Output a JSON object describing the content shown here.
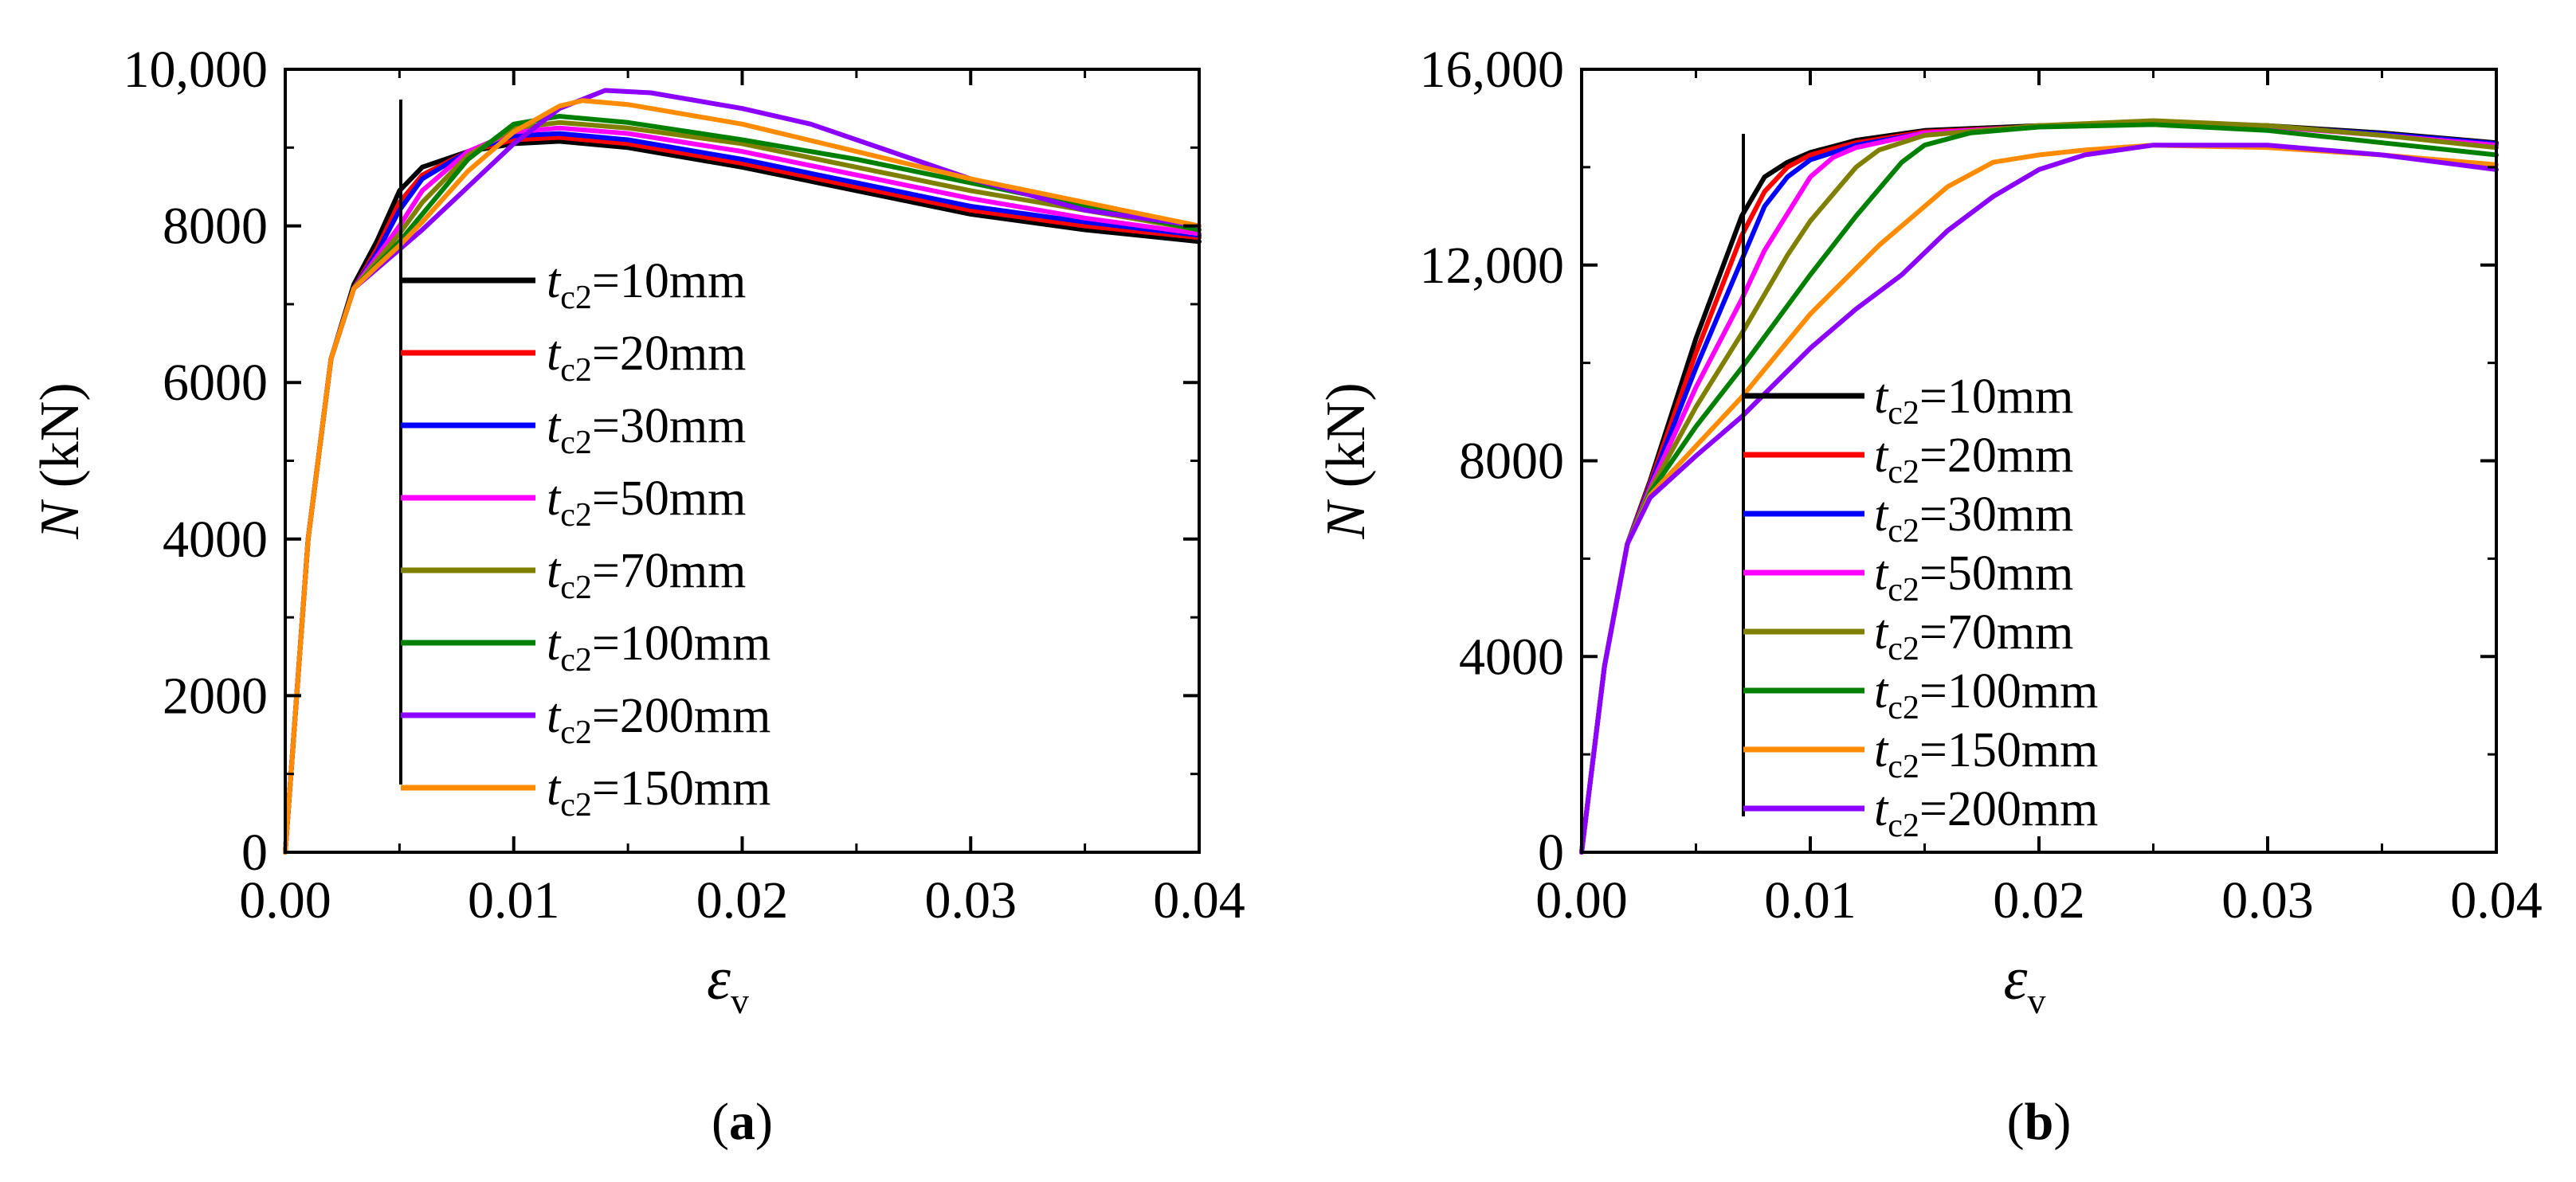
{
  "chart_data": [
    {
      "id": "a",
      "type": "line",
      "caption": "a",
      "xlabel": "ε",
      "xlabel_sub": "v",
      "ylabel_var": "N",
      "ylabel_unit": " (kN)",
      "xlim": [
        0,
        0.04
      ],
      "ylim": [
        0,
        10000
      ],
      "xticks": [
        0,
        0.01,
        0.02,
        0.03,
        0.04
      ],
      "xtick_labels": [
        "0.00",
        "0.01",
        "0.02",
        "0.03",
        "0.04"
      ],
      "yticks": [
        0,
        2000,
        4000,
        6000,
        8000,
        10000
      ],
      "ytick_labels": [
        "0",
        "2000",
        "4000",
        "6000",
        "8000",
        "10,000"
      ],
      "grid": false,
      "legend_position": "center",
      "series": [
        {
          "name": "10mm",
          "color": "#000000",
          "x": [
            0,
            0.001,
            0.002,
            0.003,
            0.004,
            0.005,
            0.006,
            0.008,
            0.01,
            0.012,
            0.015,
            0.02,
            0.025,
            0.03,
            0.035,
            0.04
          ],
          "y": [
            0,
            4000,
            6300,
            7250,
            7800,
            8450,
            8750,
            8950,
            9050,
            9080,
            9000,
            8750,
            8450,
            8150,
            7950,
            7800
          ]
        },
        {
          "name": "20mm",
          "color": "#ff0000",
          "x": [
            0,
            0.001,
            0.002,
            0.003,
            0.004,
            0.005,
            0.006,
            0.008,
            0.01,
            0.012,
            0.015,
            0.02,
            0.025,
            0.03,
            0.035,
            0.04
          ],
          "y": [
            0,
            4000,
            6300,
            7200,
            7700,
            8300,
            8650,
            8950,
            9100,
            9130,
            9050,
            8800,
            8500,
            8200,
            8000,
            7850
          ]
        },
        {
          "name": "30mm",
          "color": "#0000ff",
          "x": [
            0,
            0.001,
            0.002,
            0.003,
            0.004,
            0.005,
            0.006,
            0.008,
            0.01,
            0.012,
            0.015,
            0.02,
            0.025,
            0.03,
            0.035,
            0.04
          ],
          "y": [
            0,
            4000,
            6300,
            7200,
            7650,
            8200,
            8600,
            8950,
            9150,
            9180,
            9100,
            8850,
            8550,
            8250,
            8050,
            7880
          ]
        },
        {
          "name": "50mm",
          "color": "#ff00ff",
          "x": [
            0,
            0.001,
            0.002,
            0.003,
            0.004,
            0.005,
            0.006,
            0.008,
            0.01,
            0.012,
            0.015,
            0.02,
            0.025,
            0.03,
            0.035,
            0.04
          ],
          "y": [
            0,
            4000,
            6300,
            7200,
            7600,
            8000,
            8450,
            8950,
            9200,
            9250,
            9180,
            8950,
            8650,
            8350,
            8100,
            7900
          ]
        },
        {
          "name": "70mm",
          "color": "#808000",
          "x": [
            0,
            0.001,
            0.002,
            0.003,
            0.004,
            0.005,
            0.006,
            0.008,
            0.01,
            0.012,
            0.015,
            0.02,
            0.025,
            0.03,
            0.035,
            0.04
          ],
          "y": [
            0,
            4000,
            6300,
            7200,
            7550,
            7900,
            8300,
            8900,
            9250,
            9320,
            9250,
            9050,
            8750,
            8450,
            8200,
            7950
          ]
        },
        {
          "name": "100mm",
          "color": "#008000",
          "x": [
            0,
            0.001,
            0.002,
            0.003,
            0.004,
            0.005,
            0.006,
            0.008,
            0.01,
            0.012,
            0.015,
            0.02,
            0.025,
            0.03,
            0.035,
            0.04
          ],
          "y": [
            0,
            4000,
            6300,
            7200,
            7500,
            7800,
            8150,
            8850,
            9300,
            9400,
            9320,
            9100,
            8850,
            8550,
            8250,
            7950
          ]
        },
        {
          "name": "200mm",
          "color": "#8b00ff",
          "x": [
            0,
            0.001,
            0.002,
            0.003,
            0.004,
            0.005,
            0.006,
            0.008,
            0.01,
            0.012,
            0.014,
            0.016,
            0.02,
            0.023,
            0.025,
            0.03,
            0.035,
            0.04
          ],
          "y": [
            0,
            4000,
            6300,
            7200,
            7450,
            7700,
            7950,
            8500,
            9050,
            9500,
            9730,
            9700,
            9500,
            9300,
            9100,
            8600,
            8200,
            8000
          ]
        },
        {
          "name": "150mm",
          "color": "#ff8c00",
          "x": [
            0,
            0.001,
            0.002,
            0.003,
            0.004,
            0.005,
            0.006,
            0.008,
            0.01,
            0.012,
            0.013,
            0.015,
            0.02,
            0.025,
            0.03,
            0.035,
            0.04
          ],
          "y": [
            0,
            4000,
            6300,
            7200,
            7480,
            7750,
            8050,
            8700,
            9200,
            9530,
            9600,
            9550,
            9300,
            8950,
            8600,
            8300,
            8000
          ]
        }
      ]
    },
    {
      "id": "b",
      "type": "line",
      "caption": "b",
      "xlabel": "ε",
      "xlabel_sub": "v",
      "ylabel_var": "N",
      "ylabel_unit": " (kN)",
      "xlim": [
        0,
        0.04
      ],
      "ylim": [
        0,
        16000
      ],
      "xticks": [
        0,
        0.01,
        0.02,
        0.03,
        0.04
      ],
      "xtick_labels": [
        "0.00",
        "0.01",
        "0.02",
        "0.03",
        "0.04"
      ],
      "yticks": [
        0,
        4000,
        8000,
        12000,
        16000
      ],
      "ytick_labels": [
        "0",
        "4000",
        "8000",
        "12,000",
        "16,000"
      ],
      "grid": false,
      "legend_position": "center",
      "series": [
        {
          "name": "10mm",
          "color": "#000000",
          "x": [
            0,
            0.001,
            0.002,
            0.003,
            0.005,
            0.007,
            0.008,
            0.009,
            0.01,
            0.012,
            0.015,
            0.02,
            0.025,
            0.03,
            0.035,
            0.04
          ],
          "y": [
            0,
            3800,
            6300,
            7600,
            10500,
            13000,
            13800,
            14100,
            14300,
            14550,
            14750,
            14850,
            14900,
            14850,
            14700,
            14500
          ]
        },
        {
          "name": "20mm",
          "color": "#ff0000",
          "x": [
            0,
            0.001,
            0.002,
            0.003,
            0.005,
            0.007,
            0.008,
            0.009,
            0.01,
            0.012,
            0.015,
            0.02,
            0.025,
            0.03,
            0.035,
            0.04
          ],
          "y": [
            0,
            3800,
            6300,
            7550,
            10200,
            12600,
            13500,
            14000,
            14250,
            14500,
            14720,
            14830,
            14900,
            14830,
            14680,
            14480
          ]
        },
        {
          "name": "30mm",
          "color": "#0000ff",
          "x": [
            0,
            0.001,
            0.002,
            0.003,
            0.005,
            0.007,
            0.008,
            0.009,
            0.01,
            0.012,
            0.015,
            0.02,
            0.025,
            0.03,
            0.035,
            0.04
          ],
          "y": [
            0,
            3800,
            6300,
            7500,
            9900,
            12100,
            13200,
            13800,
            14150,
            14450,
            14700,
            14830,
            14900,
            14830,
            14680,
            14480
          ]
        },
        {
          "name": "50mm",
          "color": "#ff00ff",
          "x": [
            0,
            0.001,
            0.002,
            0.003,
            0.005,
            0.007,
            0.008,
            0.01,
            0.011,
            0.012,
            0.015,
            0.02,
            0.025,
            0.03,
            0.035,
            0.04
          ],
          "y": [
            0,
            3800,
            6300,
            7450,
            9500,
            11300,
            12300,
            13800,
            14200,
            14400,
            14700,
            14830,
            14900,
            14830,
            14650,
            14450
          ]
        },
        {
          "name": "70mm",
          "color": "#808000",
          "x": [
            0,
            0.001,
            0.002,
            0.003,
            0.005,
            0.007,
            0.009,
            0.01,
            0.012,
            0.013,
            0.015,
            0.02,
            0.025,
            0.03,
            0.035,
            0.04
          ],
          "y": [
            0,
            3800,
            6300,
            7400,
            9100,
            10600,
            12200,
            12900,
            14000,
            14350,
            14650,
            14850,
            14950,
            14850,
            14650,
            14400
          ]
        },
        {
          "name": "100mm",
          "color": "#008000",
          "x": [
            0,
            0.001,
            0.002,
            0.003,
            0.005,
            0.007,
            0.01,
            0.012,
            0.014,
            0.015,
            0.017,
            0.02,
            0.025,
            0.03,
            0.035,
            0.04
          ],
          "y": [
            0,
            3800,
            6300,
            7350,
            8700,
            9900,
            11800,
            13000,
            14100,
            14450,
            14700,
            14820,
            14870,
            14750,
            14500,
            14250
          ]
        },
        {
          "name": "150mm",
          "color": "#ff8c00",
          "x": [
            0,
            0.001,
            0.002,
            0.003,
            0.005,
            0.007,
            0.01,
            0.013,
            0.016,
            0.018,
            0.02,
            0.022,
            0.025,
            0.03,
            0.035,
            0.04
          ],
          "y": [
            0,
            3800,
            6300,
            7300,
            8300,
            9300,
            11000,
            12400,
            13600,
            14100,
            14250,
            14350,
            14450,
            14400,
            14250,
            14050
          ]
        },
        {
          "name": "200mm",
          "color": "#8b00ff",
          "x": [
            0,
            0.001,
            0.002,
            0.003,
            0.005,
            0.007,
            0.01,
            0.012,
            0.014,
            0.016,
            0.018,
            0.02,
            0.022,
            0.025,
            0.03,
            0.035,
            0.04
          ],
          "y": [
            0,
            3800,
            6300,
            7250,
            8100,
            8900,
            10300,
            11100,
            11800,
            12700,
            13400,
            13950,
            14250,
            14450,
            14450,
            14250,
            13950
          ]
        }
      ]
    }
  ]
}
